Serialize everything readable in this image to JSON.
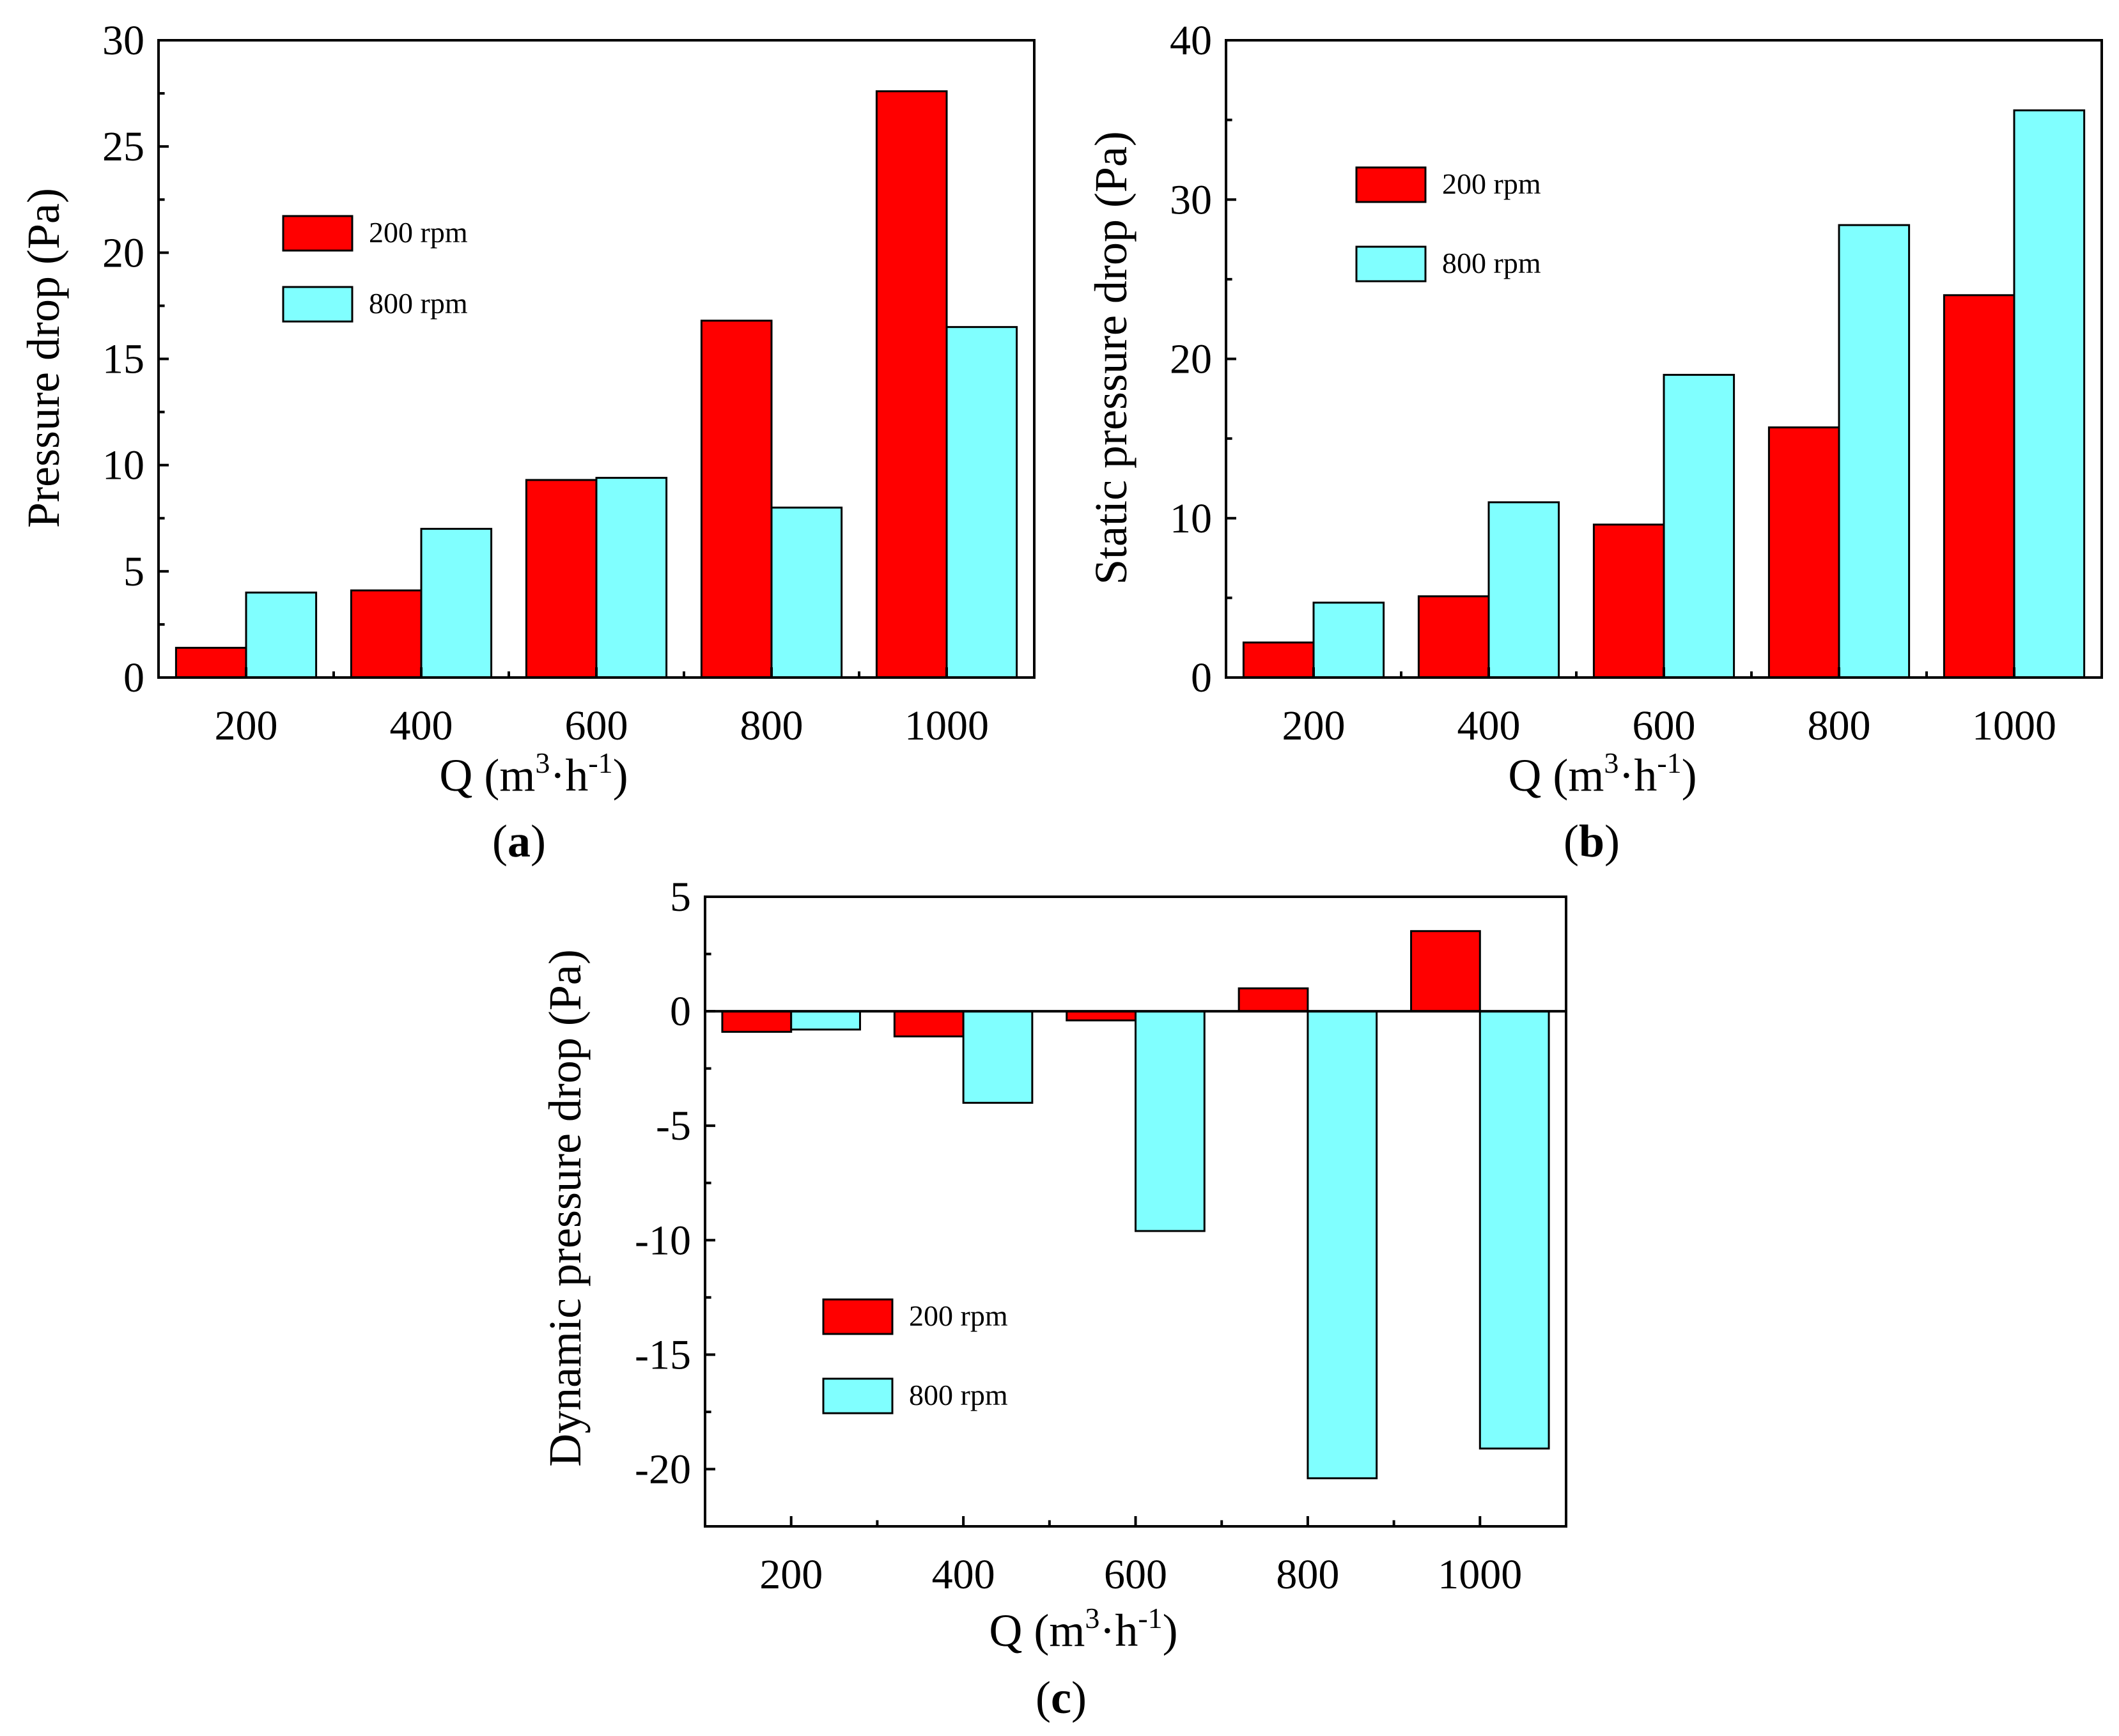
{
  "figure": {
    "panel_labels": [
      "a",
      "b",
      "c"
    ]
  },
  "chart_data": [
    {
      "id": "a",
      "type": "bar",
      "categories": [
        "200",
        "400",
        "600",
        "800",
        "1000"
      ],
      "series": [
        {
          "name": "200 rpm",
          "color": "#ff0000",
          "values": [
            1.4,
            4.1,
            9.3,
            16.8,
            27.6
          ]
        },
        {
          "name": "800 rpm",
          "color": "#80ffff",
          "values": [
            4.0,
            7.0,
            9.4,
            8.0,
            16.5
          ]
        }
      ],
      "xlabel": {
        "main": "Q (m",
        "sup1": "3",
        "mid": "·h",
        "sup2": "-1",
        "end": ")"
      },
      "ylabel": "Pressure drop (Pa)",
      "ylim": [
        0,
        30
      ],
      "yticks": [
        0,
        5,
        10,
        15,
        20,
        25,
        30
      ],
      "legend": "upper-left",
      "grid": false
    },
    {
      "id": "b",
      "type": "bar",
      "categories": [
        "200",
        "400",
        "600",
        "800",
        "1000"
      ],
      "series": [
        {
          "name": "200 rpm",
          "color": "#ff0000",
          "values": [
            2.2,
            5.1,
            9.6,
            15.7,
            24.0
          ]
        },
        {
          "name": "800 rpm",
          "color": "#80ffff",
          "values": [
            4.7,
            11.0,
            19.0,
            28.4,
            35.6
          ]
        }
      ],
      "xlabel": {
        "main": "Q (m",
        "sup1": "3",
        "mid": "·h",
        "sup2": "-1",
        "end": ")"
      },
      "ylabel": "Static pressure drop (Pa)",
      "ylim": [
        0,
        40
      ],
      "yticks": [
        0,
        10,
        20,
        30,
        40
      ],
      "legend": "upper-left",
      "grid": false
    },
    {
      "id": "c",
      "type": "bar",
      "categories": [
        "200",
        "400",
        "600",
        "800",
        "1000"
      ],
      "series": [
        {
          "name": "200 rpm",
          "color": "#ff0000",
          "values": [
            -0.9,
            -1.1,
            -0.4,
            1.0,
            3.5
          ]
        },
        {
          "name": "800 rpm",
          "color": "#80ffff",
          "values": [
            -0.8,
            -4.0,
            -9.6,
            -20.4,
            -19.1
          ]
        }
      ],
      "xlabel": {
        "main": "Q (m",
        "sup1": "3",
        "mid": "·h",
        "sup2": "-1",
        "end": ")"
      },
      "ylabel": "Dynamic pressure drop (Pa)",
      "ylim": [
        -22.5,
        5
      ],
      "yticks": [
        -20,
        -15,
        -10,
        -5,
        0,
        5
      ],
      "legend": "lower-left",
      "grid": false,
      "zero_line": true
    }
  ]
}
